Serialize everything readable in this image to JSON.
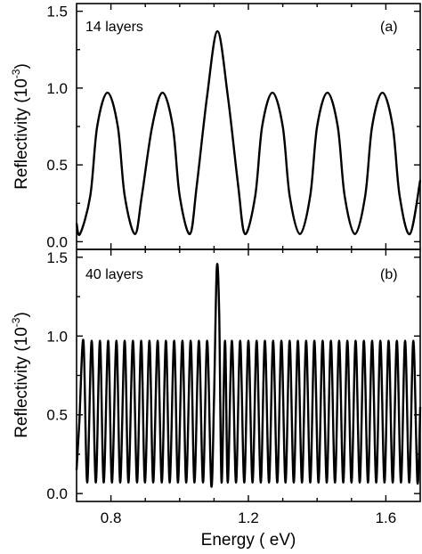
{
  "chart_data": [
    {
      "type": "line",
      "panel_label": "(a)",
      "annotation": "14 layers",
      "xlabel": "Energy ( eV)",
      "ylabel": "Reflectivity (10",
      "ylabel_exponent": "-3",
      "ylabel_close": ")",
      "xlim": [
        0.7,
        1.7
      ],
      "ylim": [
        -0.05,
        1.55
      ],
      "xticks": [
        0.8,
        1.2,
        1.6
      ],
      "yticks": [
        0.0,
        0.5,
        1.0,
        1.5
      ],
      "ytick_labels": [
        "0.0",
        "0.5",
        "1.0",
        "1.5"
      ],
      "series": [
        {
          "x": [
            0.7,
            0.71,
            0.74,
            0.76,
            0.79,
            0.82,
            0.84,
            0.87,
            0.89,
            0.92,
            0.95,
            0.98,
            1.0,
            1.03,
            1.05,
            1.08,
            1.11,
            1.14,
            1.17,
            1.19,
            1.22,
            1.24,
            1.27,
            1.3,
            1.32,
            1.35,
            1.38,
            1.4,
            1.43,
            1.46,
            1.48,
            1.51,
            1.54,
            1.56,
            1.59,
            1.62,
            1.64,
            1.67,
            1.7
          ],
          "y": [
            0.12,
            0.05,
            0.3,
            0.75,
            0.97,
            0.75,
            0.3,
            0.05,
            0.3,
            0.75,
            0.97,
            0.75,
            0.3,
            0.05,
            0.37,
            0.95,
            1.37,
            0.95,
            0.37,
            0.05,
            0.3,
            0.75,
            0.97,
            0.75,
            0.3,
            0.05,
            0.3,
            0.75,
            0.97,
            0.75,
            0.3,
            0.05,
            0.3,
            0.75,
            0.97,
            0.75,
            0.3,
            0.05,
            0.4
          ]
        }
      ]
    },
    {
      "type": "line",
      "panel_label": "(b)",
      "annotation": "40 layers",
      "xlabel": "Energy ( eV)",
      "ylabel": "Reflectivity (10",
      "ylabel_exponent": "-3",
      "ylabel_close": ")",
      "xlim": [
        0.7,
        1.7
      ],
      "ylim": [
        -0.05,
        1.55
      ],
      "xticks": [
        0.8,
        1.2,
        1.6
      ],
      "xtick_labels": [
        "0.8",
        "1.2",
        "1.6"
      ],
      "yticks": [
        0.0,
        0.5,
        1.0,
        1.5
      ],
      "ytick_labels": [
        "0.0",
        "0.5",
        "1.0",
        "1.5"
      ],
      "series": [
        {
          "x": [
            0.7,
            0.708,
            0.72,
            0.731,
            0.744,
            0.756,
            0.768,
            0.779,
            0.792,
            0.803,
            0.816,
            0.827,
            0.84,
            0.851,
            0.864,
            0.876,
            0.888,
            0.899,
            0.912,
            0.923,
            0.936,
            0.948,
            0.96,
            0.971,
            0.984,
            0.995,
            1.008,
            1.019,
            1.032,
            1.043,
            1.056,
            1.068,
            1.08,
            1.092,
            1.1,
            1.108,
            1.115,
            1.122,
            1.132,
            1.14,
            1.152,
            1.164,
            1.176,
            1.188,
            1.2,
            1.212,
            1.224,
            1.236,
            1.248,
            1.26,
            1.272,
            1.284,
            1.296,
            1.308,
            1.32,
            1.332,
            1.344,
            1.356,
            1.368,
            1.38,
            1.392,
            1.404,
            1.416,
            1.428,
            1.44,
            1.452,
            1.464,
            1.476,
            1.488,
            1.5,
            1.512,
            1.524,
            1.536,
            1.548,
            1.56,
            1.572,
            1.584,
            1.596,
            1.608,
            1.62,
            1.632,
            1.644,
            1.656,
            1.668,
            1.68,
            1.692,
            1.7
          ],
          "y": [
            0.15,
            0.45,
            0.97,
            0.07,
            0.97,
            0.07,
            0.97,
            0.07,
            0.97,
            0.07,
            0.97,
            0.07,
            0.97,
            0.07,
            0.97,
            0.07,
            0.97,
            0.07,
            0.97,
            0.07,
            0.97,
            0.07,
            0.97,
            0.07,
            0.97,
            0.07,
            0.97,
            0.07,
            0.97,
            0.07,
            0.97,
            0.07,
            0.97,
            0.05,
            0.6,
            1.43,
            1.15,
            0.07,
            0.97,
            0.07,
            0.97,
            0.07,
            0.97,
            0.07,
            0.97,
            0.07,
            0.97,
            0.07,
            0.97,
            0.07,
            0.97,
            0.07,
            0.97,
            0.07,
            0.97,
            0.07,
            0.97,
            0.07,
            0.97,
            0.07,
            0.97,
            0.07,
            0.97,
            0.07,
            0.97,
            0.07,
            0.97,
            0.07,
            0.97,
            0.07,
            0.97,
            0.07,
            0.97,
            0.07,
            0.97,
            0.07,
            0.97,
            0.07,
            0.97,
            0.07,
            0.97,
            0.07,
            0.97,
            0.07,
            0.97,
            0.07,
            0.55
          ]
        }
      ]
    }
  ]
}
